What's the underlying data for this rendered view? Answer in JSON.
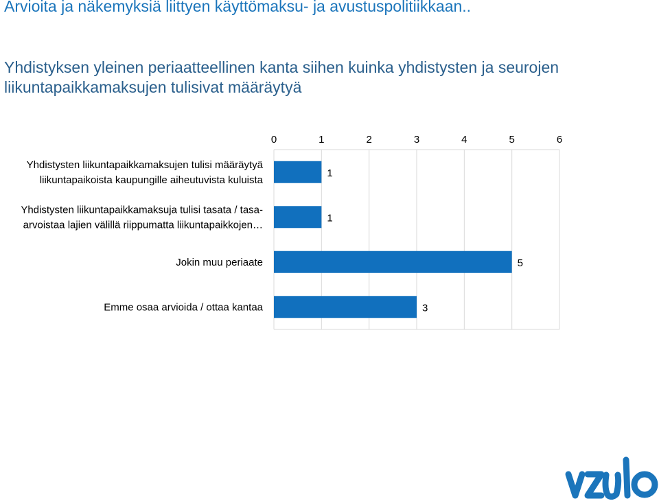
{
  "header": {
    "title": "Arvioita ja näkemyksiä liittyen käyttömaksu- ja avustuspolitiikkaan..",
    "question": "Yhdistyksen yleinen periaatteellinen kanta siihen kuinka yhdistysten ja seurojen liikuntapaikkamaksujen tulisivat määräytyä"
  },
  "chart_data": {
    "type": "bar",
    "orientation": "horizontal",
    "categories": [
      [
        "Yhdistysten liikuntapaikkamaksujen tulisi määräytyä",
        "liikuntapaikoista kaupungille aiheutuvista kuluista"
      ],
      [
        "Yhdistysten liikuntapaikkamaksuja tulisi tasata / tasa-",
        "arvoistaa lajien välillä riippumatta liikuntapaikkojen…"
      ],
      [
        "Jokin muu periaate"
      ],
      [
        "Emme osaa arvioida / ottaa kantaa"
      ]
    ],
    "values": [
      1,
      1,
      5,
      3
    ],
    "data_labels": [
      "1",
      "1",
      "5",
      "3"
    ],
    "xlim": [
      0,
      6
    ],
    "xticks": [
      "0",
      "1",
      "2",
      "3",
      "4",
      "5",
      "6"
    ],
    "x_axis_position": "top",
    "grid": true,
    "legend": "none",
    "title": "",
    "xlabel": "",
    "ylabel": "",
    "bar_color": "#1170be",
    "grid_color": "#d9d9d9"
  },
  "logo": {
    "name": "vzalo-logo",
    "color": "#1b75bb"
  }
}
